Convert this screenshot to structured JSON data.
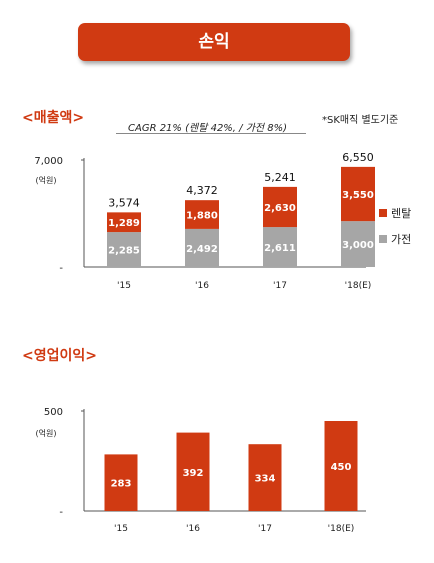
{
  "header": {
    "title": "손익"
  },
  "sales_section": {
    "heading": "<매출액>",
    "cagr": "CAGR 21% (렌탈 42%, / 가전 8%)",
    "note": "*SK매직 별도기준"
  },
  "profit_section": {
    "heading": "<영업이익>"
  },
  "colors": {
    "rental": "#d03a12",
    "appliance": "#a6a6a6",
    "accent": "#d03a12"
  },
  "chart_data": [
    {
      "type": "bar",
      "stacked": true,
      "categories": [
        "'15",
        "'16",
        "'17",
        "'18(E)"
      ],
      "series": [
        {
          "name": "가전",
          "values": [
            2285,
            2492,
            2611,
            3000
          ],
          "labels": [
            "2,285",
            "2,492",
            "2,611",
            "3,000"
          ]
        },
        {
          "name": "렌탈",
          "values": [
            1289,
            1880,
            2630,
            3550
          ],
          "labels": [
            "1,289",
            "1,880",
            "2,630",
            "3,550"
          ]
        }
      ],
      "totals": [
        "3,574",
        "4,372",
        "5,241",
        "6,550"
      ],
      "yticks": [
        "7,000",
        "-"
      ],
      "yunit": "(억원)",
      "ylim": [
        0,
        7000
      ],
      "legend": "right"
    },
    {
      "type": "bar",
      "categories": [
        "'15",
        "'16",
        "'17",
        "'18(E)"
      ],
      "values": [
        283,
        392,
        334,
        450
      ],
      "labels": [
        "283",
        "392",
        "334",
        "450"
      ],
      "yticks": [
        "500",
        "-"
      ],
      "yunit": "(억원)",
      "ylim": [
        0,
        500
      ]
    }
  ]
}
